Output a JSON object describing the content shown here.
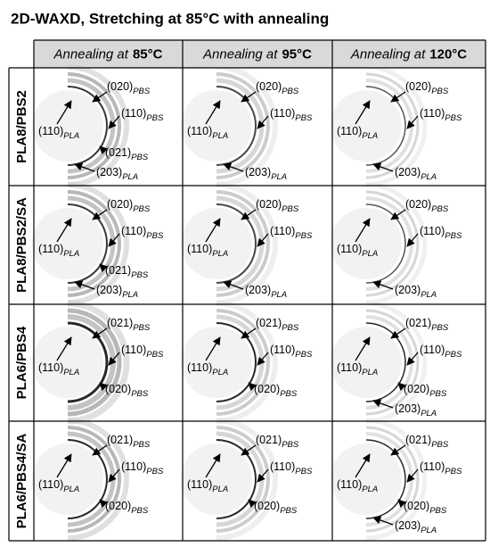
{
  "title": "2D-WAXD, Stretching at 85°C with annealing",
  "header": {
    "columns": [
      {
        "prefix": "Annealing at",
        "temp": "85°C"
      },
      {
        "prefix": "Annealing at",
        "temp": "95°C"
      },
      {
        "prefix": "Annealing at",
        "temp": "120°C"
      }
    ]
  },
  "rows": [
    {
      "label": "PLA8/PBS2",
      "cells": [
        {
          "labels": [
            {
              "index": "(020)",
              "phase": "PBS"
            },
            {
              "index": "(110)",
              "phase": "PLA"
            },
            {
              "index": "(110)",
              "phase": "PBS"
            },
            {
              "index": "(021)",
              "phase": "PBS"
            },
            {
              "index": "(203)",
              "phase": "PLA"
            }
          ]
        },
        {
          "labels": [
            {
              "index": "(020)",
              "phase": "PBS"
            },
            {
              "index": "(110)",
              "phase": "PBS"
            },
            {
              "index": "(110)",
              "phase": "PLA"
            },
            {
              "index": "(203)",
              "phase": "PLA"
            }
          ]
        },
        {
          "labels": [
            {
              "index": "(020)",
              "phase": "PBS"
            },
            {
              "index": "(110)",
              "phase": "PLA"
            },
            {
              "index": "(110)",
              "phase": "PBS"
            },
            {
              "index": "(203)",
              "phase": "PLA"
            }
          ]
        }
      ]
    },
    {
      "label": "PLA8/PBS2/SA",
      "cells": [
        {
          "labels": [
            {
              "index": "(020)",
              "phase": "PBS"
            },
            {
              "index": "(110)",
              "phase": "PLA"
            },
            {
              "index": "(110)",
              "phase": "PBS"
            },
            {
              "index": "(021)",
              "phase": "PBS"
            },
            {
              "index": "(203)",
              "phase": "PLA"
            }
          ]
        },
        {
          "labels": [
            {
              "index": "(020)",
              "phase": "PBS"
            },
            {
              "index": "(110)",
              "phase": "PLA"
            },
            {
              "index": "(110)",
              "phase": "PBS"
            },
            {
              "index": "(203)",
              "phase": "PLA"
            }
          ]
        },
        {
          "labels": [
            {
              "index": "(020)",
              "phase": "PBS"
            },
            {
              "index": "(110)",
              "phase": "PLA"
            },
            {
              "index": "(110)",
              "phase": "PBS"
            },
            {
              "index": "(203)",
              "phase": "PLA"
            }
          ]
        }
      ]
    },
    {
      "label": "PLA6/PBS4",
      "cells": [
        {
          "labels": [
            {
              "index": "(021)",
              "phase": "PBS"
            },
            {
              "index": "(110)",
              "phase": "PLA"
            },
            {
              "index": "(110)",
              "phase": "PBS"
            },
            {
              "index": "(020)",
              "phase": "PBS"
            }
          ]
        },
        {
          "labels": [
            {
              "index": "(021)",
              "phase": "PBS"
            },
            {
              "index": "(110)",
              "phase": "PLA"
            },
            {
              "index": "(110)",
              "phase": "PBS"
            },
            {
              "index": "(020)",
              "phase": "PBS"
            }
          ]
        },
        {
          "labels": [
            {
              "index": "(021)",
              "phase": "PBS"
            },
            {
              "index": "(110)",
              "phase": "PLA"
            },
            {
              "index": "(110)",
              "phase": "PBS"
            },
            {
              "index": "(020)",
              "phase": "PBS"
            },
            {
              "index": "(203)",
              "phase": "PLA"
            }
          ]
        }
      ]
    },
    {
      "label": "PLA6/PBS4/SA",
      "cells": [
        {
          "labels": [
            {
              "index": "(021)",
              "phase": "PBS"
            },
            {
              "index": "(110)",
              "phase": "PLA"
            },
            {
              "index": "(110)",
              "phase": "PBS"
            },
            {
              "index": "(020)",
              "phase": "PBS"
            }
          ]
        },
        {
          "labels": [
            {
              "index": "(021)",
              "phase": "PBS"
            },
            {
              "index": "(110)",
              "phase": "PLA"
            },
            {
              "index": "(110)",
              "phase": "PBS"
            },
            {
              "index": "(020)",
              "phase": "PBS"
            }
          ]
        },
        {
          "labels": [
            {
              "index": "(021)",
              "phase": "PBS"
            },
            {
              "index": "(110)",
              "phase": "PLA"
            },
            {
              "index": "(110)",
              "phase": "PBS"
            },
            {
              "index": "(020)",
              "phase": "PBS"
            },
            {
              "index": "(203)",
              "phase": "PLA"
            }
          ]
        }
      ]
    }
  ]
}
